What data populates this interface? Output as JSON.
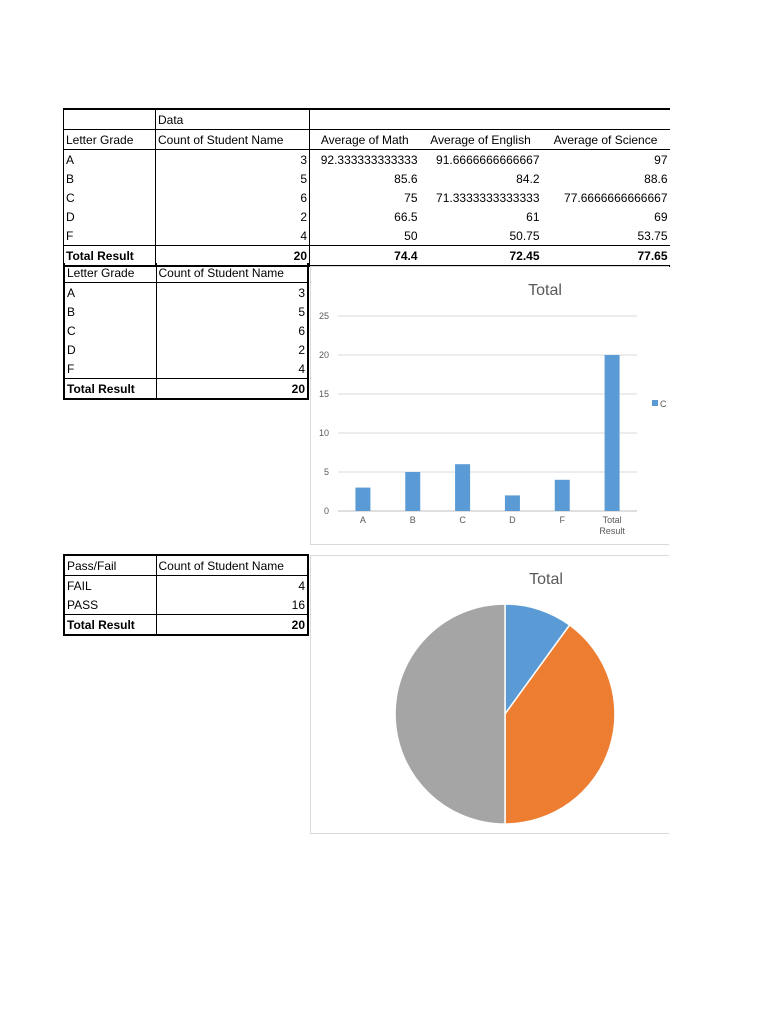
{
  "pivot1": {
    "data_label": "Data",
    "headers": [
      "Letter Grade",
      "Count of Student Name",
      "Average of Math",
      "Average of English",
      "Average of Science"
    ],
    "rows": [
      [
        "A",
        "3",
        "92.333333333333",
        "91.6666666666667",
        "97"
      ],
      [
        "B",
        "5",
        "85.6",
        "84.2",
        "88.6"
      ],
      [
        "C",
        "6",
        "75",
        "71.3333333333333",
        "77.6666666666667"
      ],
      [
        "D",
        "2",
        "66.5",
        "61",
        "69"
      ],
      [
        "F",
        "4",
        "50",
        "50.75",
        "53.75"
      ]
    ],
    "total": [
      "Total Result",
      "20",
      "74.4",
      "72.45",
      "77.65"
    ]
  },
  "pivot2": {
    "headers": [
      "Letter Grade",
      "Count of Student Name"
    ],
    "rows": [
      [
        "A",
        "3"
      ],
      [
        "B",
        "5"
      ],
      [
        "C",
        "6"
      ],
      [
        "D",
        "2"
      ],
      [
        "F",
        "4"
      ]
    ],
    "total": [
      "Total Result",
      "20"
    ]
  },
  "pivot3": {
    "headers": [
      "Pass/Fail",
      "Count of Student Name"
    ],
    "rows": [
      [
        "FAIL",
        "4"
      ],
      [
        "PASS",
        "16"
      ]
    ],
    "total": [
      "Total Result",
      "20"
    ]
  },
  "chart_data": [
    {
      "type": "bar",
      "title": "Total",
      "categories": [
        "A",
        "B",
        "C",
        "D",
        "F",
        "Total Result"
      ],
      "values": [
        3,
        5,
        6,
        2,
        4,
        20
      ],
      "ylim": [
        0,
        25
      ],
      "yticks": [
        "0",
        "5",
        "10",
        "15",
        "20",
        "25"
      ],
      "grid": true,
      "legend_position": "right",
      "legend_text": "C",
      "color": "#5b9bd5"
    },
    {
      "type": "pie",
      "title": "Total",
      "values": [
        4,
        16,
        20
      ],
      "colors": [
        "#5b9bd5",
        "#ed7d31",
        "#a5a5a5"
      ]
    }
  ]
}
